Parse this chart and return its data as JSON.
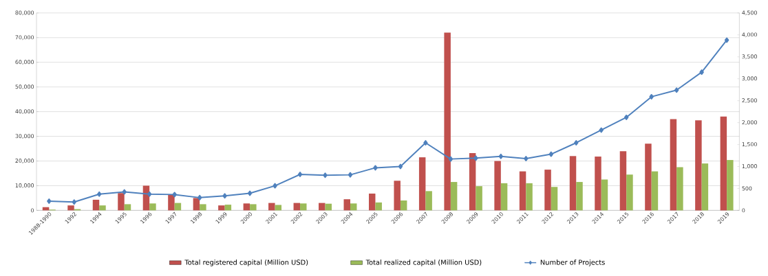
{
  "chart_data": {
    "type": "bar",
    "categories": [
      "1988-1990",
      "1992",
      "1994",
      "1995",
      "1996",
      "1997",
      "1998",
      "1999",
      "2000",
      "2001",
      "2002",
      "2003",
      "2004",
      "2005",
      "2006",
      "2007",
      "2008",
      "2009",
      "2010",
      "2011",
      "2012",
      "2013",
      "2014",
      "2015",
      "2016",
      "2017",
      "2018",
      "2019"
    ],
    "series": [
      {
        "name": "Total registered capital (Million USD)",
        "color": "#c0504d",
        "values": [
          1300,
          2000,
          4300,
          7000,
          10000,
          6500,
          5000,
          2000,
          2800,
          3000,
          3000,
          3000,
          4500,
          6800,
          12000,
          21500,
          72000,
          23200,
          20000,
          15800,
          16500,
          22000,
          21800,
          24000,
          27000,
          37000,
          36500,
          38000
        ]
      },
      {
        "name": "Total realized capital (Million USD)",
        "color": "#9bbb59",
        "values": [
          300,
          500,
          2000,
          2500,
          2800,
          3000,
          2500,
          2300,
          2500,
          2200,
          2800,
          2700,
          2800,
          3200,
          4000,
          7800,
          11500,
          9800,
          11000,
          11000,
          9500,
          11500,
          12500,
          14500,
          15800,
          17500,
          19000,
          20400
        ]
      },
      {
        "name": "Number of Projects",
        "color": "#4f81bd",
        "type": "line",
        "axis": "y2",
        "values": [
          210,
          190,
          370,
          420,
          370,
          360,
          290,
          330,
          390,
          560,
          820,
          800,
          810,
          970,
          1000,
          1540,
          1170,
          1190,
          1230,
          1180,
          1280,
          1540,
          1830,
          2120,
          2590,
          2740,
          3150,
          3880
        ]
      }
    ],
    "ylim": [
      0,
      80000
    ],
    "yticks": [
      0,
      {
        "value": 10000,
        "label": "10,000"
      },
      {
        "value": 20000,
        "label": "20,000"
      },
      {
        "value": 30000,
        "label": "30,000"
      },
      {
        "value": 40000,
        "label": "40,000"
      },
      {
        "value": 50000,
        "label": "50,000"
      },
      {
        "value": 60000,
        "label": "60,000"
      },
      {
        "value": 70000,
        "label": "70,000"
      },
      {
        "value": 80000,
        "label": "80,000"
      }
    ],
    "y2lim": [
      0,
      4500
    ],
    "y2ticks": [
      0,
      500,
      {
        "value": 1000,
        "label": "1,000"
      },
      {
        "value": 1500,
        "label": "1,500"
      },
      {
        "value": 2000,
        "label": "2,000"
      },
      {
        "value": 2500,
        "label": "2,500"
      },
      {
        "value": 3000,
        "label": "3,000"
      },
      {
        "value": 3500,
        "label": "3,500"
      },
      {
        "value": 4000,
        "label": "4,000"
      },
      {
        "value": 4500,
        "label": "4,500"
      }
    ],
    "grid": "y",
    "legend": "bottom",
    "marker": "diamond"
  }
}
